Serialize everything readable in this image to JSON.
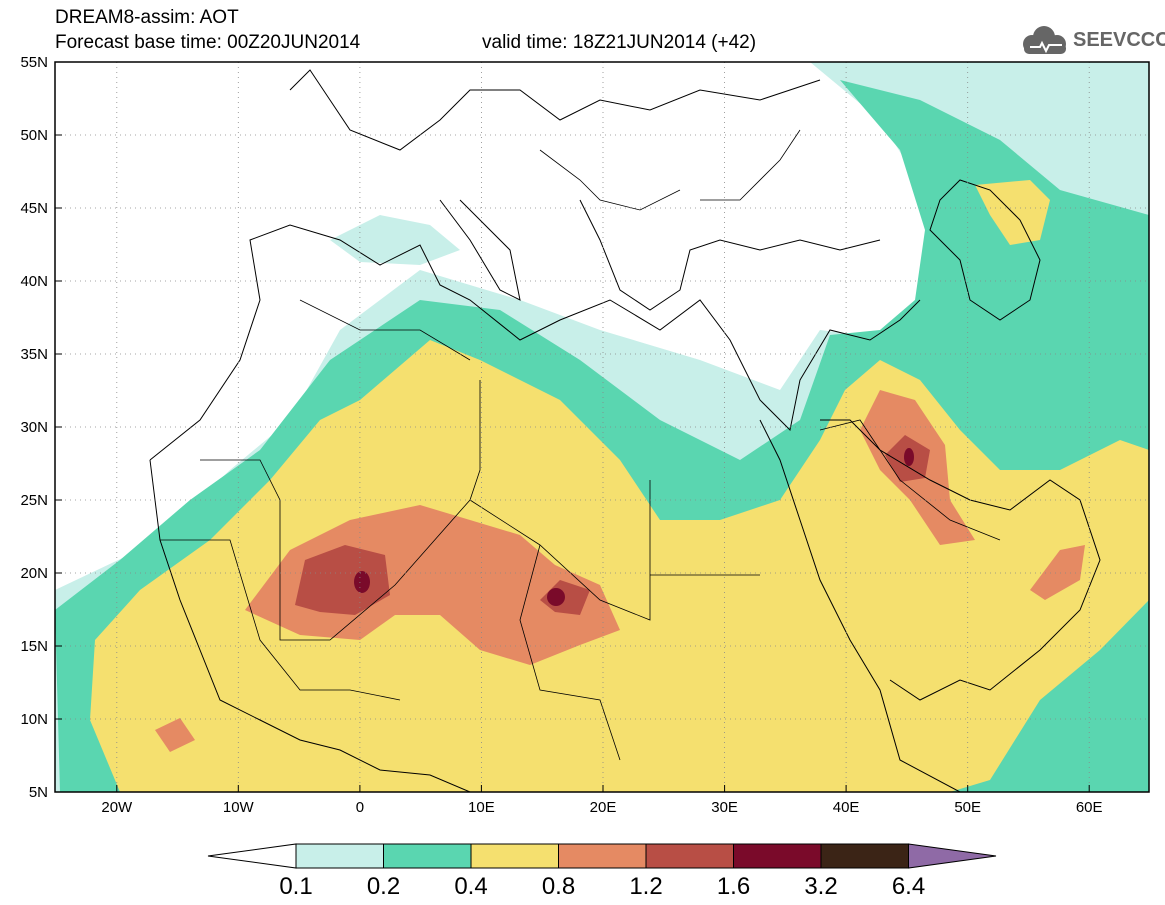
{
  "header": {
    "title": "DREAM8-assim: AOT",
    "base_time": "Forecast base time: 00Z20JUN2014",
    "valid_time": "valid time: 18Z21JUN2014 (+42)",
    "logo_text": "SEEVCCC"
  },
  "axes": {
    "lat_labels": [
      "55N",
      "50N",
      "45N",
      "40N",
      "35N",
      "30N",
      "25N",
      "20N",
      "15N",
      "10N",
      "5N"
    ],
    "lon_labels": [
      "20W",
      "10W",
      "0",
      "10E",
      "20E",
      "30E",
      "40E",
      "50E",
      "60E"
    ]
  },
  "colorbar": {
    "labels": [
      "0.1",
      "0.2",
      "0.4",
      "0.8",
      "1.2",
      "1.6",
      "3.2",
      "6.4"
    ],
    "colors": [
      "#c8efe9",
      "#5ad6b0",
      "#f5e06f",
      "#e58a63",
      "#b84e45",
      "#7a0a2a",
      "#3b2416",
      "#8f6aa6"
    ]
  },
  "map_colors": {
    "land": "#ffffff",
    "border": "#000000"
  }
}
